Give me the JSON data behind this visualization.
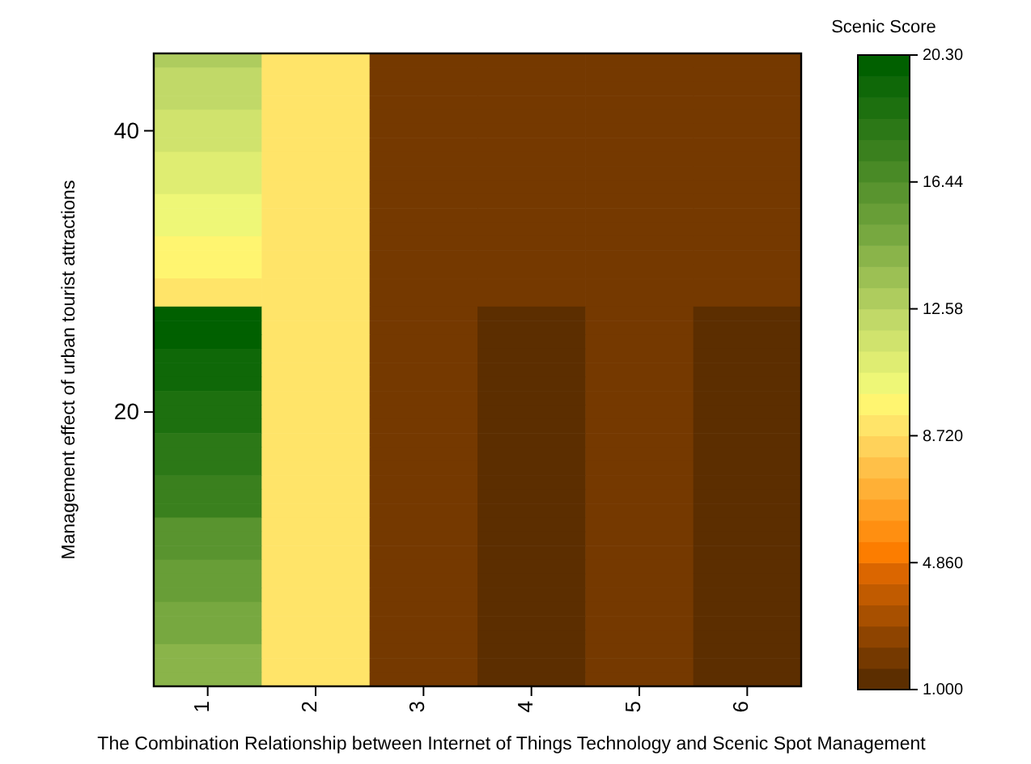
{
  "chart_data": {
    "type": "heatmap",
    "xlabel": "The Combination Relationship between Internet of Things Technology and Scenic Spot Management",
    "ylabel": "Management effect of urban tourist attractions",
    "clabel": "Scenic Score",
    "categories": [
      "1",
      "2",
      "3",
      "4",
      "5",
      "6"
    ],
    "y_categories": [
      null,
      null,
      null,
      null,
      null,
      "40",
      null,
      null,
      null,
      null,
      null,
      null,
      null,
      null,
      null,
      null,
      null,
      null,
      null,
      null,
      null,
      null,
      null,
      null,
      null,
      "20",
      null,
      null,
      null,
      null,
      null,
      null,
      null,
      null,
      null,
      null,
      null,
      null,
      null,
      null,
      null,
      null,
      null,
      null,
      null
    ],
    "clim": [
      1.0,
      20.3
    ],
    "cticks": [
      {
        "value": 1.0,
        "label": "1.000"
      },
      {
        "value": 4.86,
        "label": "4.860"
      },
      {
        "value": 8.72,
        "label": "8.720"
      },
      {
        "value": 12.58,
        "label": "12.58"
      },
      {
        "value": 16.44,
        "label": "16.44"
      },
      {
        "value": 20.3,
        "label": "20.30"
      }
    ],
    "cells": [
      [
        12.9,
        9.0,
        2.0,
        2.0,
        2.0,
        2.0
      ],
      [
        12.3,
        9.0,
        2.0,
        2.0,
        2.0,
        2.0
      ],
      [
        12.3,
        9.0,
        2.0,
        2.0,
        2.0,
        2.0
      ],
      [
        12.3,
        9.0,
        2.0,
        2.0,
        2.0,
        2.0
      ],
      [
        11.6,
        9.0,
        2.0,
        2.0,
        2.0,
        2.0
      ],
      [
        11.6,
        9.0,
        2.0,
        2.0,
        2.0,
        2.0
      ],
      [
        11.6,
        9.0,
        2.0,
        2.0,
        2.0,
        2.0
      ],
      [
        11.0,
        9.0,
        2.0,
        2.0,
        2.0,
        2.0
      ],
      [
        11.0,
        9.0,
        2.0,
        2.0,
        2.0,
        2.0
      ],
      [
        11.0,
        9.0,
        2.0,
        2.0,
        2.0,
        2.0
      ],
      [
        10.3,
        9.0,
        2.0,
        2.0,
        2.0,
        2.0
      ],
      [
        10.3,
        9.0,
        2.0,
        2.0,
        2.0,
        2.0
      ],
      [
        10.3,
        9.0,
        2.0,
        2.0,
        2.0,
        2.0
      ],
      [
        9.7,
        9.0,
        2.0,
        2.0,
        2.0,
        2.0
      ],
      [
        9.7,
        9.0,
        2.0,
        2.0,
        2.0,
        2.0
      ],
      [
        9.7,
        9.0,
        2.0,
        2.0,
        2.0,
        2.0
      ],
      [
        9.0,
        9.0,
        2.0,
        2.0,
        2.0,
        2.0
      ],
      [
        9.0,
        9.0,
        2.0,
        2.0,
        2.0,
        2.0
      ],
      [
        20.0,
        9.0,
        2.0,
        1.3,
        2.0,
        1.3
      ],
      [
        20.0,
        9.0,
        2.0,
        1.3,
        2.0,
        1.3
      ],
      [
        20.0,
        9.0,
        2.0,
        1.3,
        2.0,
        1.3
      ],
      [
        19.3,
        9.0,
        2.0,
        1.3,
        2.0,
        1.3
      ],
      [
        19.3,
        9.0,
        2.0,
        1.3,
        2.0,
        1.3
      ],
      [
        19.3,
        9.0,
        2.0,
        1.3,
        2.0,
        1.3
      ],
      [
        18.7,
        9.0,
        2.0,
        1.3,
        2.0,
        1.3
      ],
      [
        18.7,
        9.0,
        2.0,
        1.3,
        2.0,
        1.3
      ],
      [
        18.7,
        9.0,
        2.0,
        1.3,
        2.0,
        1.3
      ],
      [
        18.0,
        9.0,
        2.0,
        1.3,
        2.0,
        1.3
      ],
      [
        18.0,
        9.0,
        2.0,
        1.3,
        2.0,
        1.3
      ],
      [
        18.0,
        9.0,
        2.0,
        1.3,
        2.0,
        1.3
      ],
      [
        17.4,
        9.0,
        2.0,
        1.3,
        2.0,
        1.3
      ],
      [
        17.4,
        9.0,
        2.0,
        1.3,
        2.0,
        1.3
      ],
      [
        17.4,
        9.0,
        2.0,
        1.3,
        2.0,
        1.3
      ],
      [
        16.1,
        9.0,
        2.0,
        1.3,
        2.0,
        1.3
      ],
      [
        16.1,
        9.0,
        2.0,
        1.3,
        2.0,
        1.3
      ],
      [
        16.1,
        9.0,
        2.0,
        1.3,
        2.0,
        1.3
      ],
      [
        15.5,
        9.0,
        2.0,
        1.3,
        2.0,
        1.3
      ],
      [
        15.5,
        9.0,
        2.0,
        1.3,
        2.0,
        1.3
      ],
      [
        15.5,
        9.0,
        2.0,
        1.3,
        2.0,
        1.3
      ],
      [
        14.8,
        9.0,
        2.0,
        1.3,
        2.0,
        1.3
      ],
      [
        14.8,
        9.0,
        2.0,
        1.3,
        2.0,
        1.3
      ],
      [
        14.8,
        9.0,
        2.0,
        1.3,
        2.0,
        1.3
      ],
      [
        14.2,
        9.0,
        2.0,
        1.3,
        2.0,
        1.3
      ],
      [
        14.2,
        9.0,
        2.0,
        1.3,
        2.0,
        1.3
      ],
      [
        14.2,
        9.0,
        2.0,
        1.3,
        2.0,
        1.3
      ]
    ]
  }
}
